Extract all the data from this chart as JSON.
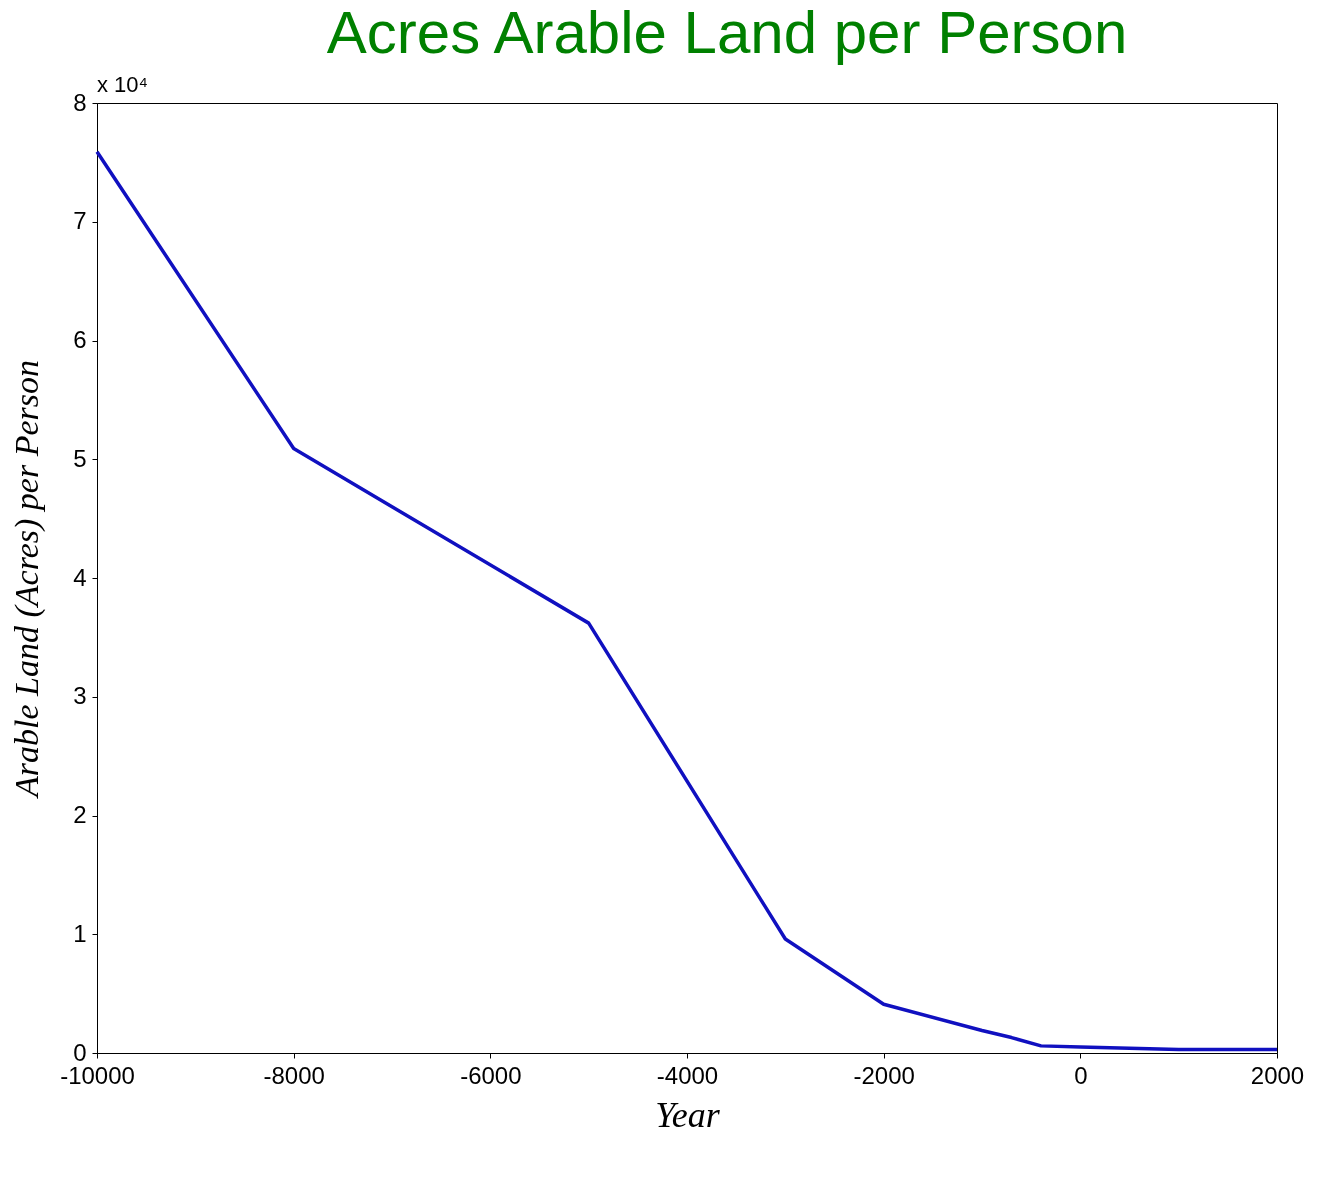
{
  "chart_data": {
    "type": "line",
    "title": "Acres Arable Land per Person",
    "xlabel": "Year",
    "ylabel": "Arable Land (Acres) per Person",
    "annotations": [
      "x 10⁴"
    ],
    "x": [
      -10000,
      -8000,
      -5000,
      -3000,
      -2000,
      -1000,
      -700,
      -400,
      0,
      1000,
      2000
    ],
    "series": [
      {
        "color": "#1010c0",
        "values": [
          7.59,
          5.09,
          3.62,
          0.96,
          0.41,
          0.19,
          0.13,
          0.06,
          0.05,
          0.03,
          0.03
        ]
      }
    ],
    "xlim": [
      -10000,
      2000
    ],
    "xticks": [
      -10000,
      -8000,
      -6000,
      -4000,
      -2000,
      0,
      2000
    ],
    "ylim": [
      0,
      8
    ],
    "yticks": [
      0,
      1,
      2,
      3,
      4,
      5,
      6,
      7,
      8
    ]
  }
}
